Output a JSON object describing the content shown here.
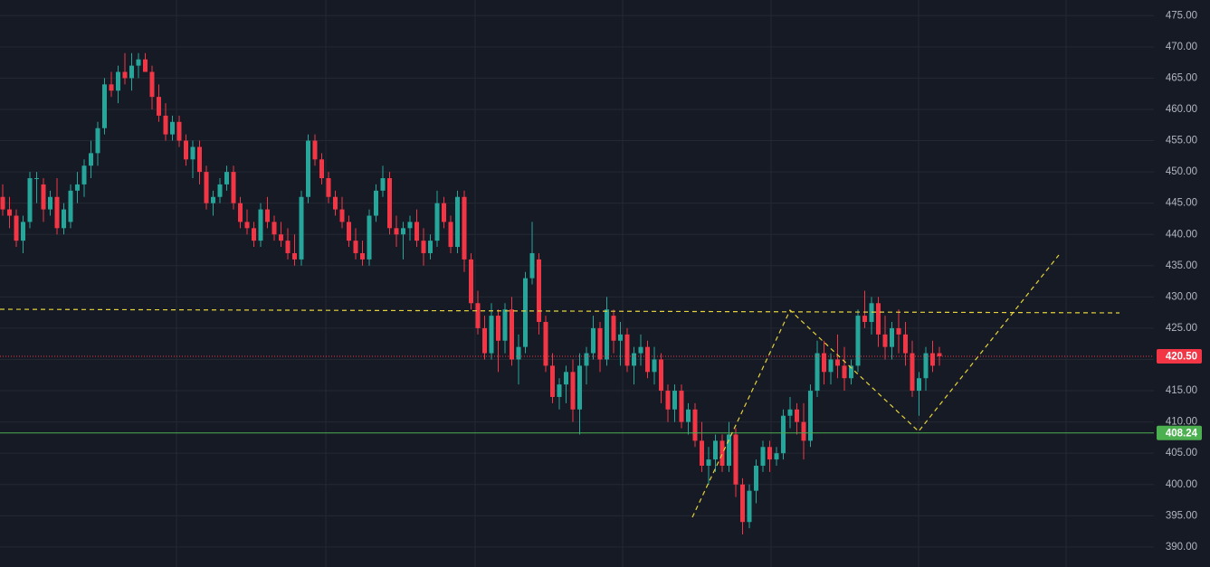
{
  "chart_data": {
    "type": "candlestick",
    "up_color": "#26a69a",
    "down_color": "#f23645",
    "ylim": [
      386.8,
      477.5
    ],
    "yticks": [
      {
        "value": 390,
        "label": "390.00"
      },
      {
        "value": 395,
        "label": "395.00"
      },
      {
        "value": 400,
        "label": "400.00"
      },
      {
        "value": 405,
        "label": "405.00"
      },
      {
        "value": 410,
        "label": "410.00"
      },
      {
        "value": 415,
        "label": "415.00"
      },
      {
        "value": 420,
        "label": "420.00"
      },
      {
        "value": 425,
        "label": "425.00"
      },
      {
        "value": 430,
        "label": "430.00"
      },
      {
        "value": 435,
        "label": "435.00"
      },
      {
        "value": 440,
        "label": "440.00"
      },
      {
        "value": 445,
        "label": "445.00"
      },
      {
        "value": 450,
        "label": "450.00"
      },
      {
        "value": 455,
        "label": "455.00"
      },
      {
        "value": 460,
        "label": "460.00"
      },
      {
        "value": 465,
        "label": "465.00"
      },
      {
        "value": 470,
        "label": "470.00"
      },
      {
        "value": 475,
        "label": "475.00"
      }
    ],
    "grid": true,
    "price_lines": [
      {
        "value": 420.5,
        "label": "420.50",
        "color": "#f23645",
        "style": "dotted"
      },
      {
        "value": 408.24,
        "label": "408.24",
        "color": "#4caf50",
        "style": "solid"
      }
    ],
    "ohlc": [
      [
        446,
        448,
        443,
        444
      ],
      [
        444,
        446,
        441,
        443
      ],
      [
        443,
        444,
        438,
        439
      ],
      [
        439,
        443,
        437,
        442
      ],
      [
        442,
        450,
        441,
        449
      ],
      [
        449,
        450,
        445,
        449
      ],
      [
        448,
        449,
        442,
        444
      ],
      [
        444,
        447,
        443,
        446
      ],
      [
        446,
        449,
        440,
        441
      ],
      [
        441,
        445,
        440,
        444
      ],
      [
        442,
        448,
        441,
        447
      ],
      [
        447,
        450,
        445,
        448
      ],
      [
        448,
        452,
        446,
        451
      ],
      [
        451,
        455,
        449,
        453
      ],
      [
        453,
        458,
        451,
        457
      ],
      [
        457,
        465,
        456,
        464
      ],
      [
        464,
        466,
        462,
        463
      ],
      [
        463,
        467,
        461,
        466
      ],
      [
        466,
        469,
        464,
        465
      ],
      [
        465,
        469,
        463,
        467
      ],
      [
        467,
        469,
        465,
        468
      ],
      [
        468,
        469,
        466,
        466
      ],
      [
        466,
        467,
        460,
        462
      ],
      [
        462,
        464,
        458,
        459
      ],
      [
        459,
        461,
        455,
        456
      ],
      [
        456,
        459,
        455,
        458
      ],
      [
        458,
        459,
        454,
        455
      ],
      [
        455,
        456,
        451,
        452
      ],
      [
        452,
        455,
        449,
        454
      ],
      [
        454,
        455,
        448,
        450
      ],
      [
        450,
        451,
        444,
        445
      ],
      [
        445,
        447,
        443,
        446
      ],
      [
        446,
        449,
        445,
        448
      ],
      [
        448,
        451,
        447,
        450
      ],
      [
        450,
        451,
        444,
        445
      ],
      [
        445,
        446,
        441,
        442
      ],
      [
        442,
        444,
        440,
        441
      ],
      [
        441,
        442,
        438,
        439
      ],
      [
        439,
        445,
        438,
        444
      ],
      [
        444,
        446,
        441,
        442
      ],
      [
        442,
        443,
        439,
        440
      ],
      [
        440,
        442,
        438,
        439
      ],
      [
        439,
        441,
        436,
        437
      ],
      [
        437,
        440,
        435,
        436
      ],
      [
        436,
        447,
        435,
        446
      ],
      [
        446,
        456,
        445,
        455
      ],
      [
        455,
        456,
        451,
        452
      ],
      [
        452,
        453,
        448,
        449
      ],
      [
        449,
        450,
        445,
        446
      ],
      [
        446,
        447,
        443,
        444
      ],
      [
        444,
        446,
        441,
        442
      ],
      [
        442,
        443,
        438,
        439
      ],
      [
        439,
        441,
        436,
        437
      ],
      [
        437,
        439,
        435,
        436
      ],
      [
        436,
        444,
        435,
        443
      ],
      [
        443,
        448,
        442,
        447
      ],
      [
        447,
        451,
        446,
        449
      ],
      [
        449,
        450,
        440,
        441
      ],
      [
        441,
        443,
        438,
        440
      ],
      [
        440,
        442,
        436,
        441
      ],
      [
        441,
        443,
        439,
        442
      ],
      [
        442,
        444,
        438,
        439
      ],
      [
        439,
        441,
        435,
        437
      ],
      [
        437,
        440,
        436,
        439
      ],
      [
        439,
        447,
        438,
        445
      ],
      [
        445,
        446,
        441,
        442
      ],
      [
        442,
        443,
        437,
        438
      ],
      [
        438,
        447,
        437,
        446
      ],
      [
        446,
        447,
        434,
        436
      ],
      [
        436,
        437,
        428,
        429
      ],
      [
        429,
        431,
        424,
        425
      ],
      [
        425,
        427,
        420,
        421
      ],
      [
        421,
        429,
        420,
        427
      ],
      [
        427,
        428,
        418,
        423
      ],
      [
        423,
        429,
        421,
        428
      ],
      [
        428,
        430,
        419,
        420
      ],
      [
        420,
        424,
        416,
        422
      ],
      [
        422,
        434,
        421,
        433
      ],
      [
        433,
        442,
        432,
        437
      ],
      [
        436,
        437,
        424,
        426
      ],
      [
        426,
        427,
        418,
        419
      ],
      [
        419,
        421,
        413,
        414
      ],
      [
        414,
        417,
        412,
        416
      ],
      [
        416,
        419,
        413,
        418
      ],
      [
        418,
        420,
        410,
        412
      ],
      [
        412,
        421,
        408,
        419
      ],
      [
        419,
        422,
        416,
        421
      ],
      [
        421,
        427,
        420,
        425
      ],
      [
        425,
        426,
        418,
        420
      ],
      [
        420,
        430,
        419,
        428
      ],
      [
        427,
        428,
        421,
        423
      ],
      [
        423,
        426,
        419,
        424
      ],
      [
        424,
        425,
        418,
        419
      ],
      [
        419,
        422,
        416,
        421
      ],
      [
        421,
        424,
        419,
        422
      ],
      [
        422,
        423,
        417,
        418
      ],
      [
        418,
        422,
        416,
        420
      ],
      [
        420,
        421,
        413,
        415
      ],
      [
        415,
        416,
        410,
        412
      ],
      [
        412,
        416,
        410,
        415
      ],
      [
        415,
        416,
        409,
        410
      ],
      [
        410,
        413,
        408,
        412
      ],
      [
        412,
        413,
        406,
        407
      ],
      [
        407,
        410,
        402,
        403
      ],
      [
        403,
        406,
        400,
        404
      ],
      [
        404,
        408,
        402,
        407
      ],
      [
        407,
        408,
        402,
        403
      ],
      [
        403,
        410,
        402,
        408
      ],
      [
        408,
        409,
        398,
        400
      ],
      [
        400,
        401,
        392,
        394
      ],
      [
        394,
        400,
        393,
        399
      ],
      [
        399,
        404,
        397,
        403
      ],
      [
        403,
        407,
        402,
        406
      ],
      [
        406,
        407,
        402,
        404
      ],
      [
        404,
        406,
        403,
        405
      ],
      [
        405,
        412,
        404,
        411
      ],
      [
        411,
        414,
        409,
        412
      ],
      [
        412,
        413,
        408,
        410
      ],
      [
        410,
        413,
        404,
        407
      ],
      [
        407,
        416,
        406,
        415
      ],
      [
        415,
        423,
        414,
        421
      ],
      [
        421,
        423,
        416,
        418
      ],
      [
        418,
        421,
        416,
        420
      ],
      [
        420,
        424,
        417,
        419
      ],
      [
        419,
        422,
        415,
        417
      ],
      [
        417,
        420,
        416,
        419
      ],
      [
        419,
        428,
        418,
        427
      ],
      [
        427,
        431,
        425,
        426
      ],
      [
        426,
        430,
        424,
        429
      ],
      [
        429,
        430,
        422,
        424
      ],
      [
        424,
        427,
        420,
        422
      ],
      [
        422,
        426,
        420,
        425
      ],
      [
        425,
        428,
        421,
        424
      ],
      [
        424,
        426,
        419,
        421
      ],
      [
        421,
        423,
        414,
        415
      ],
      [
        415,
        418,
        411,
        417
      ],
      [
        417,
        422,
        415,
        421
      ],
      [
        421,
        423,
        418,
        419
      ],
      [
        421,
        422,
        419,
        420.5
      ]
    ]
  }
}
